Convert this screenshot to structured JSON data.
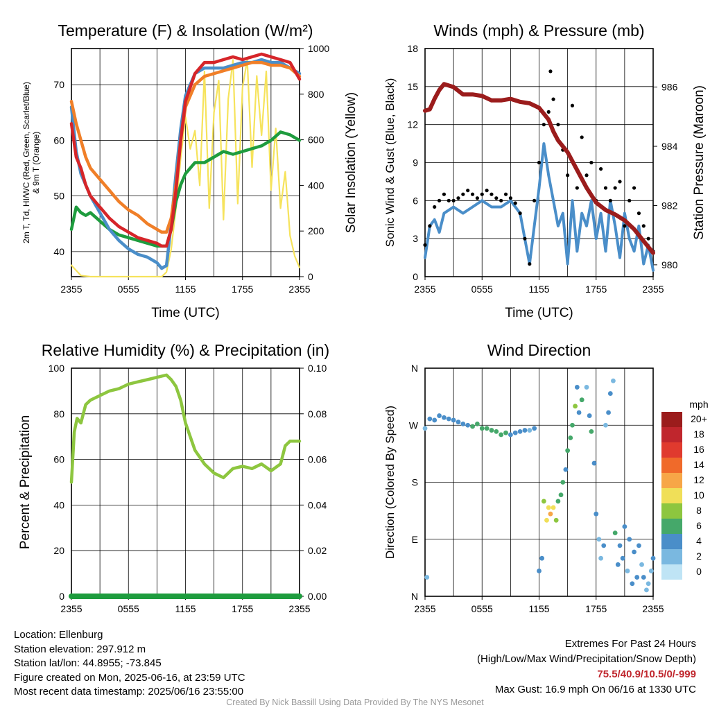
{
  "chart_data": [
    {
      "type": "line",
      "title": "Temperature (F) & Insolation (W/m²)",
      "xlabel": "Time (UTC)",
      "ylabel": "2m T, T_d, HI/WC (Red, Green, Scarlet/Blue) & 9m T (Orange)",
      "ylabel_right": "Solar Insolation (Yellow)",
      "x_ticks": [
        "2355",
        "0555",
        "1155",
        "1755",
        "2355"
      ],
      "ylim": [
        35.5,
        76.5
      ],
      "ylim_right": [
        0,
        1000
      ],
      "y_ticks": [
        40,
        50,
        60,
        70
      ],
      "y_ticks_right": [
        0,
        200,
        400,
        600,
        800,
        1000
      ],
      "grid": true,
      "series": [
        {
          "color": "#1e9c3e",
          "x": [
            0,
            0.5,
            1,
            1.5,
            2,
            3,
            4,
            5,
            6,
            7,
            8,
            9,
            10,
            10.5,
            11,
            11.5,
            12,
            13,
            14,
            15,
            16,
            17,
            18,
            19,
            20,
            21,
            22,
            23,
            24
          ],
          "values": [
            44,
            48,
            47,
            46.5,
            47,
            45.5,
            44,
            43,
            42.5,
            42,
            41.5,
            41,
            41,
            44,
            49,
            52,
            54,
            56,
            56,
            57,
            58,
            57.5,
            58,
            58.5,
            59,
            60,
            61.5,
            61,
            60
          ]
        },
        {
          "color": "#4a8ec9",
          "x": [
            0,
            0.5,
            1,
            1.5,
            2,
            3,
            4,
            5,
            6,
            7,
            8,
            9,
            9.5,
            10,
            10.5,
            11,
            11.5,
            12,
            13,
            14,
            15,
            16,
            17,
            18,
            19,
            20,
            21,
            22,
            23,
            24
          ],
          "values": [
            66,
            58,
            54,
            52,
            50,
            47,
            44,
            42,
            40.5,
            39.5,
            39,
            38,
            37,
            37.5,
            45,
            54,
            62,
            68,
            72,
            73,
            73,
            73,
            73.5,
            74,
            74,
            74.5,
            74,
            74,
            73,
            72
          ]
        },
        {
          "color": "#f07f28",
          "x": [
            0,
            0.5,
            1,
            1.5,
            2,
            3,
            4,
            5,
            6,
            7,
            8,
            9,
            9.5,
            10,
            10.5,
            11,
            11.5,
            12,
            13,
            14,
            15,
            16,
            17,
            18,
            19,
            20,
            21,
            22,
            23,
            24
          ],
          "values": [
            67,
            63,
            60,
            57,
            55,
            53,
            51,
            49,
            47.5,
            46.5,
            45,
            44,
            43.5,
            43.5,
            46,
            52,
            60,
            66,
            70,
            71.5,
            72,
            72.5,
            73,
            73.5,
            74,
            74,
            73.5,
            73.5,
            73,
            71.5
          ]
        },
        {
          "color": "#d62529",
          "x": [
            0,
            0.5,
            1,
            1.5,
            2,
            3,
            4,
            5,
            6,
            7,
            8,
            9,
            9.5,
            10,
            10.5,
            11,
            11.5,
            12,
            13,
            14,
            15,
            16,
            17,
            18,
            19,
            20,
            21,
            22,
            23,
            24
          ],
          "values": [
            63,
            57,
            55,
            52,
            50,
            48,
            46,
            44.5,
            43.5,
            42.5,
            42,
            41.5,
            41,
            41,
            44,
            51,
            60,
            67,
            72,
            74,
            74,
            74.5,
            75,
            74.5,
            75,
            75.5,
            75,
            74.5,
            74,
            71
          ]
        }
      ],
      "series_right": [
        {
          "color": "#f6e35c",
          "x": [
            0,
            1,
            2,
            4,
            6,
            8,
            9,
            9.5,
            10,
            10.5,
            11,
            11.5,
            12,
            12.5,
            13,
            13.5,
            14,
            14.5,
            15,
            15.5,
            16,
            16.5,
            17,
            17.5,
            18,
            18.5,
            19,
            19.5,
            20,
            20.5,
            21,
            21.5,
            22,
            22.5,
            23,
            23.5,
            24
          ],
          "values": [
            50,
            5,
            0,
            0,
            0,
            0,
            0,
            0,
            20,
            120,
            300,
            520,
            700,
            560,
            640,
            400,
            900,
            300,
            720,
            860,
            250,
            780,
            950,
            320,
            830,
            950,
            480,
            880,
            620,
            900,
            380,
            650,
            300,
            460,
            180,
            90,
            40
          ]
        }
      ]
    },
    {
      "type": "scatter",
      "title": "Winds (mph) & Pressure (mb)",
      "xlabel": "Time (UTC)",
      "ylabel": "Sonic Wind & Gust (Blue, Black)",
      "ylabel_right": "Station Pressure (Maroon)",
      "x_ticks": [
        "2355",
        "0555",
        "1155",
        "1755",
        "2355"
      ],
      "ylim": [
        0,
        18
      ],
      "ylim_right": [
        979.6,
        987.3
      ],
      "y_ticks": [
        0,
        3,
        6,
        9,
        12,
        15,
        18
      ],
      "y_ticks_right": [
        980,
        982,
        984,
        986
      ],
      "grid": true,
      "series": [
        {
          "color": "#4a8ec9",
          "type": "line",
          "x": [
            0,
            0.5,
            1,
            1.5,
            2,
            3,
            4,
            5,
            6,
            7,
            8,
            9,
            10,
            10.5,
            11,
            11.5,
            12,
            12.5,
            13,
            13.5,
            14,
            14.5,
            15,
            15.5,
            16,
            16.5,
            17,
            17.5,
            18,
            18.5,
            19,
            19.5,
            20,
            20.5,
            21,
            21.5,
            22,
            22.5,
            23,
            23.5,
            24
          ],
          "values": [
            1.5,
            4,
            4.5,
            3.5,
            5,
            5.5,
            5,
            5.5,
            6,
            5.5,
            5.5,
            6,
            5,
            3,
            1,
            4,
            7,
            10.5,
            8,
            6,
            4,
            5,
            1,
            6,
            2,
            5,
            4,
            6,
            3,
            5,
            2,
            6,
            4,
            1.5,
            5,
            3,
            2,
            4,
            1,
            2.5,
            0.5
          ]
        },
        {
          "color": "#000000",
          "type": "scatter",
          "x": [
            0,
            0.5,
            1,
            1.5,
            2,
            2.5,
            3,
            3.5,
            4,
            4.5,
            5,
            5.5,
            6,
            6.5,
            7,
            7.5,
            8,
            8.5,
            9,
            9.5,
            10,
            10.5,
            11,
            11.5,
            12,
            12.5,
            13,
            13.2,
            13.5,
            14,
            14.5,
            15,
            15.5,
            16,
            16.5,
            17,
            17.5,
            18,
            18.5,
            19,
            19.5,
            20,
            20.5,
            21,
            21.5,
            22,
            22.5,
            23,
            23.5,
            24
          ],
          "values": [
            2.5,
            4,
            5.5,
            6,
            6.5,
            6,
            6,
            6.2,
            6.5,
            6.8,
            6.5,
            6.2,
            6.5,
            6.8,
            6.5,
            6.2,
            6,
            6.5,
            6.2,
            5.8,
            5,
            3,
            1,
            6,
            9,
            12,
            13,
            16.2,
            14,
            12,
            10,
            8,
            13.5,
            7,
            11,
            8,
            9,
            6,
            8.5,
            7,
            6,
            7,
            7.5,
            4,
            6,
            7,
            5,
            4,
            3,
            2
          ]
        }
      ],
      "series_right": [
        {
          "color": "#9b1c1c",
          "x": [
            0,
            0.5,
            1,
            1.5,
            2,
            3,
            4,
            5,
            6,
            7,
            8,
            9,
            10,
            11,
            12,
            12.5,
            13,
            13.5,
            14,
            15,
            16,
            17,
            18,
            19,
            20,
            21,
            22,
            23,
            24
          ],
          "values": [
            985.2,
            985.25,
            985.6,
            985.9,
            986.1,
            986.0,
            985.75,
            985.75,
            985.7,
            985.55,
            985.55,
            985.6,
            985.5,
            985.45,
            985.3,
            985.1,
            984.9,
            984.5,
            984.2,
            983.8,
            983.2,
            982.6,
            982.1,
            981.85,
            981.7,
            981.5,
            981.2,
            980.8,
            980.4
          ]
        }
      ]
    },
    {
      "type": "line",
      "title": "Relative Humidity (%) & Precipitation (in)",
      "xlabel": "",
      "ylabel": "Percent & Precipitation",
      "x_ticks": [
        "2355",
        "0555",
        "1155",
        "1755",
        "2355"
      ],
      "ylim": [
        0,
        100
      ],
      "ylim_right": [
        0,
        0.1
      ],
      "y_ticks": [
        0,
        20,
        40,
        60,
        80,
        100
      ],
      "y_ticks_right": [
        "0.00",
        "0.02",
        "0.04",
        "0.06",
        "0.08",
        "0.10"
      ],
      "grid": true,
      "series": [
        {
          "color": "#8dc63f",
          "x": [
            0,
            0.3,
            0.6,
            1,
            1.5,
            2,
            3,
            4,
            5,
            6,
            7,
            8,
            9,
            9.5,
            10,
            10.5,
            11,
            11.5,
            12,
            13,
            14,
            15,
            16,
            17,
            18,
            19,
            20,
            21,
            22,
            22.5,
            23,
            24
          ],
          "values": [
            50,
            72,
            78,
            76,
            84,
            86,
            88,
            90,
            91,
            93,
            94,
            95,
            96,
            96.5,
            97,
            95,
            92,
            86,
            76,
            64,
            58,
            54,
            52,
            56,
            57,
            56,
            58,
            55,
            58,
            66,
            68,
            68
          ]
        },
        {
          "color": "#1e9c3e",
          "x": [
            0,
            24
          ],
          "values": [
            0,
            0
          ]
        }
      ]
    },
    {
      "type": "scatter",
      "title": "Wind Direction",
      "xlabel": "",
      "ylabel": "Direction (Colored By Speed)",
      "x_ticks": [
        "2355",
        "0555",
        "1155",
        "1755",
        "2355"
      ],
      "y_ticks": [
        "N",
        "E",
        "S",
        "W",
        "N"
      ],
      "ylim": [
        0,
        360
      ],
      "grid": true,
      "legend_title": "mph",
      "legend_labels": [
        "20+",
        "18",
        "16",
        "14",
        "12",
        "10",
        "8",
        "6",
        "4",
        "2",
        "0"
      ],
      "legend_colors": [
        "#9b1c1c",
        "#c0262d",
        "#e03a2e",
        "#f06a2a",
        "#f7a647",
        "#f0df58",
        "#8dc63f",
        "#45a86a",
        "#4a8ec9",
        "#7ab8e0",
        "#bfe4f5"
      ],
      "points_x": [
        0,
        0.2,
        0.5,
        1,
        1.5,
        2,
        2.5,
        3,
        3.5,
        4,
        4.5,
        5,
        5.5,
        6,
        6.5,
        7,
        7.5,
        8,
        8.5,
        9,
        9.5,
        10,
        10.5,
        11,
        11.5,
        12,
        12.3,
        12.5,
        12.8,
        13,
        13.2,
        13.5,
        13.8,
        14,
        14.3,
        14.5,
        14.8,
        15,
        15.3,
        15.5,
        15.8,
        16,
        16.2,
        16.5,
        17,
        17.3,
        17.5,
        17.8,
        18,
        18.3,
        18.5,
        18.8,
        19,
        19.3,
        19.5,
        19.8,
        20,
        20.3,
        20.5,
        20.8,
        21,
        21.3,
        21.5,
        21.8,
        22,
        22.3,
        22.5,
        22.8,
        23,
        23.3,
        23.5,
        23.8,
        24
      ],
      "points_y": [
        265,
        30,
        280,
        278,
        285,
        282,
        280,
        278,
        275,
        272,
        270,
        268,
        272,
        265,
        265,
        262,
        260,
        255,
        258,
        255,
        258,
        260,
        262,
        262,
        265,
        40,
        60,
        150,
        120,
        140,
        130,
        140,
        120,
        150,
        160,
        180,
        200,
        230,
        250,
        270,
        300,
        330,
        290,
        310,
        330,
        285,
        260,
        210,
        130,
        90,
        60,
        80,
        270,
        290,
        320,
        340,
        100,
        50,
        80,
        60,
        110,
        40,
        90,
        20,
        70,
        30,
        80,
        50,
        30,
        10,
        20,
        40,
        60
      ],
      "points_speed": [
        2,
        1,
        3,
        4,
        4,
        4,
        4,
        4,
        4,
        4,
        4,
        5,
        5,
        5,
        5,
        5,
        5,
        5,
        5,
        4,
        4,
        3,
        3,
        2,
        3,
        3,
        4,
        7,
        9,
        10,
        11,
        9,
        8,
        5,
        6,
        5,
        4,
        5,
        6,
        6,
        7,
        4,
        3,
        5,
        2,
        4,
        6,
        3,
        4,
        2,
        1,
        3,
        2,
        3,
        4,
        2,
        5,
        3,
        4,
        4,
        3,
        2,
        3,
        4,
        3,
        3,
        4,
        2,
        3,
        2,
        1,
        2,
        3
      ]
    }
  ],
  "info": {
    "location": "Location: Ellenburg",
    "elevation": "Station elevation: 297.912 m",
    "latlon": "Station lat/lon: 44.8955; -73.845",
    "created": "Figure created on Mon, 2025-06-16, at 23:59 UTC",
    "recent": "Most recent data timestamp: 2025/06/16 23:55:00"
  },
  "extremes": {
    "title": "Extremes For Past 24 Hours",
    "subtitle": "(High/Low/Max Wind/Precipitation/Snow Depth)",
    "values": "75.5/40.9/10.5/0/-999",
    "gust": "Max Gust: 16.9 mph On 06/16 at 1330 UTC"
  },
  "credit": "Created By Nick Bassill Using Data Provided By The NYS Mesonet"
}
